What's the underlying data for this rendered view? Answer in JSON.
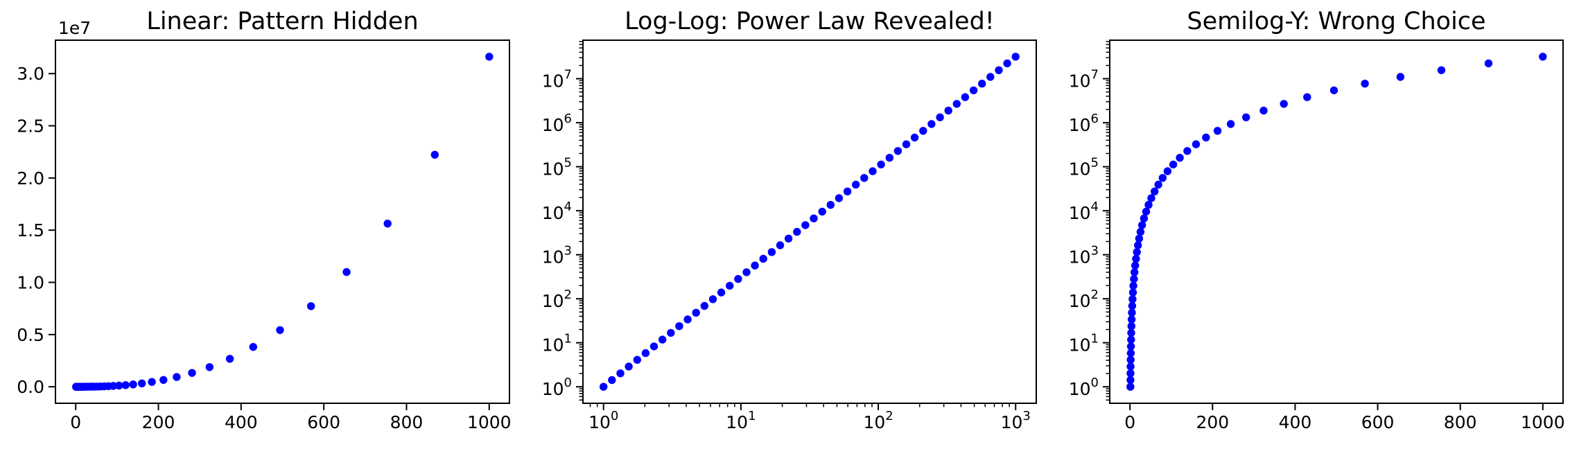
{
  "figure": {
    "background": "#ffffff",
    "axes_color": "#000000",
    "marker_color": "#0000ff"
  },
  "chart_data": {
    "description": "Same power-law dataset y = x^2.5 shown on three axis scalings; 50 points log-spaced in x from 1 to 1000",
    "x": [
      1.0,
      1.151,
      1.326,
      1.526,
      1.758,
      2.024,
      2.33,
      2.683,
      3.089,
      3.556,
      4.095,
      4.715,
      5.429,
      6.251,
      7.197,
      8.286,
      9.541,
      10.99,
      12.65,
      14.56,
      16.77,
      19.31,
      22.23,
      25.6,
      29.47,
      33.93,
      39.07,
      44.98,
      51.79,
      59.64,
      68.66,
      79.06,
      91.03,
      104.8,
      120.7,
      138.9,
      160.0,
      184.2,
      212.1,
      244.2,
      281.2,
      323.7,
      372.8,
      429.2,
      494.2,
      569.0,
      655.1,
      754.3,
      868.5,
      1000.0
    ],
    "y": [
      1.0,
      1.423,
      2.024,
      2.878,
      4.095,
      5.825,
      8.286,
      11.79,
      16.77,
      23.85,
      33.93,
      48.27,
      68.66,
      97.68,
      138.9,
      197.7,
      281.2,
      400.0,
      569.0,
      809.4,
      1151.0,
      1638.0,
      2330.0,
      3314.0,
      4715.0,
      6707.0,
      9541.0,
      13570.0,
      19310.0,
      27460.0,
      39070.0,
      55580.0,
      79060.0,
      112500.0,
      160000.0,
      227600.0,
      323700.0,
      460500.0,
      655100.0,
      932000.0,
      1326000.0,
      1886000.0,
      2683000.0,
      3816000.0,
      5429000.0,
      7723000.0,
      10990000.0,
      15630000.0,
      22230000.0,
      31620000.0
    ],
    "charts": [
      {
        "type": "scatter",
        "title": "Linear: Pattern Hidden",
        "xscale": "linear",
        "yscale": "linear",
        "xlim": [
          -49,
          1049
        ],
        "ylim": [
          -1581000,
          33200000
        ],
        "xticks": [
          0,
          200,
          400,
          600,
          800,
          1000
        ],
        "xtick_labels": [
          "0",
          "200",
          "400",
          "600",
          "800",
          "1000"
        ],
        "yticks": [
          0,
          5000000,
          10000000,
          15000000,
          20000000,
          25000000,
          30000000
        ],
        "ytick_labels": [
          "0.0",
          "0.5",
          "1.0",
          "1.5",
          "2.0",
          "2.5",
          "3.0"
        ],
        "y_offset_label": "1e7",
        "grid": false,
        "legend": null
      },
      {
        "type": "scatter",
        "title": "Log-Log: Power Law Revealed!",
        "xscale": "log",
        "yscale": "log",
        "xlim": [
          0.708,
          1413
        ],
        "ylim": [
          0.422,
          75000000
        ],
        "xticks": [
          1,
          10,
          100,
          1000
        ],
        "xtick_labels": [
          "10^0",
          "10^1",
          "10^2",
          "10^3"
        ],
        "yticks": [
          1,
          10,
          100,
          1000,
          10000,
          100000,
          1000000,
          10000000
        ],
        "ytick_labels": [
          "10^0",
          "10^1",
          "10^2",
          "10^3",
          "10^4",
          "10^5",
          "10^6",
          "10^7"
        ],
        "y_offset_label": null,
        "grid": false,
        "legend": null
      },
      {
        "type": "scatter",
        "title": "Semilog-Y: Wrong Choice",
        "xscale": "linear",
        "yscale": "log",
        "xlim": [
          -49,
          1049
        ],
        "ylim": [
          0.422,
          75000000
        ],
        "xticks": [
          0,
          200,
          400,
          600,
          800,
          1000
        ],
        "xtick_labels": [
          "0",
          "200",
          "400",
          "600",
          "800",
          "1000"
        ],
        "yticks": [
          1,
          10,
          100,
          1000,
          10000,
          100000,
          1000000,
          10000000
        ],
        "ytick_labels": [
          "10^0",
          "10^1",
          "10^2",
          "10^3",
          "10^4",
          "10^5",
          "10^6",
          "10^7"
        ],
        "y_offset_label": null,
        "grid": false,
        "legend": null
      }
    ]
  }
}
